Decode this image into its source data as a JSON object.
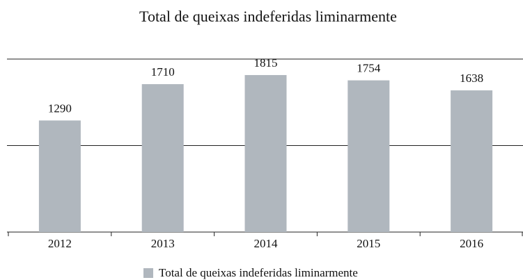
{
  "chart_data": {
    "type": "bar",
    "title": "Total de queixas indeferidas liminarmente",
    "categories": [
      "2012",
      "2013",
      "2014",
      "2015",
      "2016"
    ],
    "series": [
      {
        "name": "Total de queixas indeferidas liminarmente",
        "color": "#b0b7be",
        "values": [
          1290,
          1710,
          1815,
          1754,
          1638
        ]
      }
    ],
    "ylim": [
      0,
      2000
    ],
    "yticks": [
      0,
      1000,
      2000
    ],
    "grid": true,
    "legend": "bottom"
  }
}
